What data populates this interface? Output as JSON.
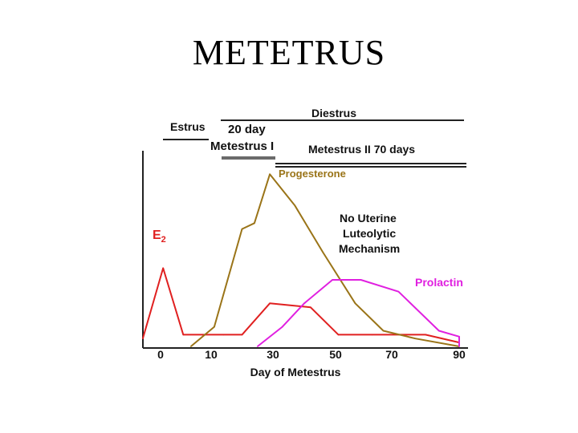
{
  "slide": {
    "title": "METETRUS"
  },
  "chart_data": {
    "type": "line",
    "title": "",
    "xlabel": "Day of Metestrus",
    "ylabel": "",
    "xlim": [
      0,
      90
    ],
    "x_ticks": [
      0,
      10,
      30,
      50,
      70,
      90
    ],
    "phases": {
      "estrus": "Estrus",
      "metestrus_one": [
        "20 day",
        "Metestrus I"
      ],
      "diestrus": "Diestrus",
      "metestrus_two": "Metestrus II 70 days"
    },
    "annotation": [
      "No Uterine",
      "Luteolytic",
      "Mechanism"
    ],
    "series": [
      {
        "name": "E2",
        "label_main": "E",
        "label_sub": "2",
        "color": "#e02020",
        "values": [
          0.04,
          0.4,
          0.06,
          0.06,
          0.06,
          0.22,
          0.2,
          0.06,
          0.06,
          0.06,
          0.02
        ]
      },
      {
        "name": "Progesterone",
        "label_main": "Progesterone",
        "label_sub": "",
        "color": "#9a7418",
        "values": [
          0.0,
          0.1,
          0.6,
          0.63,
          0.88,
          0.72,
          0.48,
          0.22,
          0.08,
          0.04,
          0.0
        ]
      },
      {
        "name": "Prolactin",
        "label_main": "Prolactin",
        "label_sub": "",
        "color": "#e020e0",
        "values": [
          0.0,
          0.1,
          0.22,
          0.34,
          0.34,
          0.28,
          0.08,
          0.05,
          0.0
        ]
      }
    ]
  }
}
